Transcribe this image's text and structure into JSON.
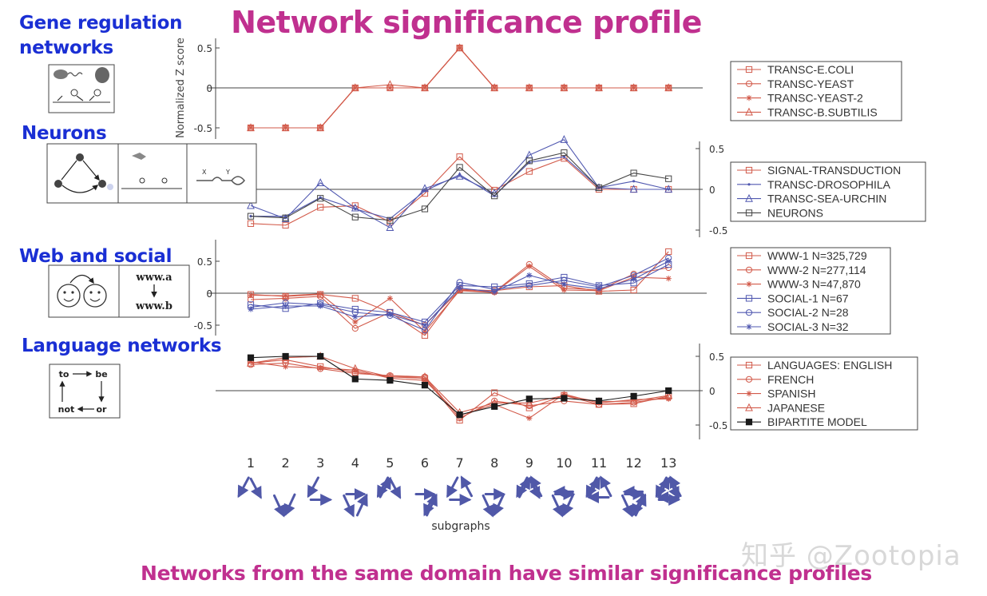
{
  "title": "Network significance profile",
  "subtitle": "Networks from the same domain have similar significance profiles",
  "categories": {
    "gene": "Gene regulation\nnetworks",
    "neurons": "Neurons",
    "web": "Web and social",
    "language": "Language networks"
  },
  "icons": {
    "web_a": "www.a",
    "web_b": "www.b",
    "lang_to": "to",
    "lang_be": "be",
    "lang_not": "not",
    "lang_or": "or",
    "neuron_x": "X",
    "neuron_y": "Y"
  },
  "watermark": "知乎 @Zootopia",
  "chart_data": {
    "type": "line",
    "ylabel": "Normalized Z score",
    "xlabel": "subgraphs",
    "x": [
      1,
      2,
      3,
      4,
      5,
      6,
      7,
      8,
      9,
      10,
      11,
      12,
      13
    ],
    "ylim": [
      -0.5,
      0.5
    ],
    "yticks": [
      "0.5",
      "0",
      "-0.5"
    ],
    "panels": [
      {
        "name": "Gene regulation networks",
        "legend_position": "right",
        "series": [
          {
            "name": "TRANSC-E.COLI",
            "color": "#d25a4a",
            "marker": "square",
            "values": [
              -0.5,
              -0.5,
              -0.5,
              0,
              0,
              0,
              0.5,
              0,
              0,
              0,
              0,
              0,
              0
            ]
          },
          {
            "name": "TRANSC-YEAST",
            "color": "#d25a4a",
            "marker": "circle",
            "values": [
              -0.5,
              -0.5,
              -0.5,
              0,
              0,
              0,
              0.5,
              0,
              0,
              0,
              0,
              0,
              0
            ]
          },
          {
            "name": "TRANSC-YEAST-2",
            "color": "#d25a4a",
            "marker": "star",
            "values": [
              -0.5,
              -0.5,
              -0.5,
              0,
              0,
              0,
              0.5,
              0,
              0,
              0,
              0,
              0,
              0
            ]
          },
          {
            "name": "TRANSC-B.SUBTILIS",
            "color": "#d25a4a",
            "marker": "triangle",
            "values": [
              -0.5,
              -0.5,
              -0.5,
              0,
              0.04,
              0,
              0.5,
              0,
              0,
              0,
              0,
              0,
              0
            ]
          }
        ]
      },
      {
        "name": "Neurons",
        "legend_position": "right",
        "series": [
          {
            "name": "SIGNAL-TRANSDUCTION",
            "color": "#d25a4a",
            "marker": "square",
            "values": [
              -0.42,
              -0.44,
              -0.22,
              -0.2,
              -0.4,
              -0.05,
              0.4,
              -0.01,
              0.22,
              0.38,
              0,
              0,
              0
            ]
          },
          {
            "name": "TRANSC-DROSOPHILA",
            "color": "#5058b0",
            "marker": "dot",
            "values": [
              -0.33,
              -0.33,
              -0.1,
              -0.24,
              -0.36,
              -0.02,
              0.18,
              -0.08,
              0.33,
              0.4,
              0.02,
              0.1,
              0
            ]
          },
          {
            "name": "TRANSC-SEA-URCHIN",
            "color": "#5058b0",
            "marker": "triangle",
            "values": [
              -0.2,
              -0.36,
              0.08,
              -0.23,
              -0.47,
              0.01,
              0.16,
              -0.05,
              0.42,
              0.61,
              0.02,
              0,
              0
            ]
          },
          {
            "name": "NEURONS",
            "color": "#454545",
            "marker": "square",
            "values": [
              -0.33,
              -0.35,
              -0.11,
              -0.34,
              -0.38,
              -0.24,
              0.27,
              -0.08,
              0.35,
              0.45,
              0.02,
              0.2,
              0.13
            ]
          }
        ]
      },
      {
        "name": "Web and social",
        "legend_position": "right",
        "series": [
          {
            "name": "WWW-1 N=325,729",
            "color": "#d25a4a",
            "marker": "square",
            "values": [
              -0.02,
              -0.05,
              -0.02,
              -0.08,
              -0.3,
              -0.66,
              0.06,
              0.04,
              0.1,
              0.12,
              0.03,
              0.05,
              0.65
            ]
          },
          {
            "name": "WWW-2 N=277,114",
            "color": "#d25a4a",
            "marker": "circle",
            "values": [
              -0.1,
              -0.08,
              -0.05,
              -0.55,
              -0.3,
              -0.5,
              0.05,
              0.02,
              0.45,
              0.08,
              0.05,
              0.3,
              0.4
            ]
          },
          {
            "name": "WWW-3 N=47,870",
            "color": "#d25a4a",
            "marker": "star",
            "values": [
              -0.03,
              -0.04,
              -0.01,
              -0.45,
              -0.08,
              -0.6,
              0.04,
              0.01,
              0.42,
              0.05,
              0.04,
              0.25,
              0.23
            ]
          },
          {
            "name": "SOCIAL-1 N=67",
            "color": "#5058b0",
            "marker": "square",
            "values": [
              -0.18,
              -0.24,
              -0.16,
              -0.25,
              -0.3,
              -0.45,
              0.12,
              0.1,
              0.15,
              0.25,
              0.12,
              0.16,
              0.45
            ]
          },
          {
            "name": "SOCIAL-2 N=28",
            "color": "#5058b0",
            "marker": "circle",
            "values": [
              -0.22,
              -0.15,
              -0.18,
              -0.3,
              -0.35,
              -0.58,
              0.17,
              0.06,
              0.12,
              0.2,
              0.1,
              0.28,
              0.55
            ]
          },
          {
            "name": "SOCIAL-3 N=32",
            "color": "#5058b0",
            "marker": "star",
            "values": [
              -0.25,
              -0.2,
              -0.2,
              -0.37,
              -0.33,
              -0.5,
              0.08,
              0.02,
              0.28,
              0.14,
              0.07,
              0.22,
              0.5
            ]
          }
        ]
      },
      {
        "name": "Language networks",
        "legend_position": "right",
        "series": [
          {
            "name": "LANGUAGES: ENGLISH",
            "color": "#d25a4a",
            "marker": "square",
            "values": [
              0.4,
              0.45,
              0.35,
              0.27,
              0.2,
              0.18,
              -0.43,
              -0.03,
              -0.25,
              -0.07,
              -0.2,
              -0.19,
              -0.08
            ]
          },
          {
            "name": "FRENCH",
            "color": "#d25a4a",
            "marker": "circle",
            "values": [
              0.38,
              0.4,
              0.32,
              0.25,
              0.22,
              0.2,
              -0.4,
              -0.15,
              -0.22,
              -0.15,
              -0.2,
              -0.17,
              -0.1
            ]
          },
          {
            "name": "SPANISH",
            "color": "#d25a4a",
            "marker": "star",
            "values": [
              0.42,
              0.35,
              0.33,
              0.3,
              0.18,
              0.15,
              -0.36,
              -0.2,
              -0.4,
              -0.05,
              -0.18,
              -0.13,
              -0.12
            ]
          },
          {
            "name": "JAPANESE",
            "color": "#d25a4a",
            "marker": "triangle",
            "values": [
              0.4,
              0.48,
              0.5,
              0.32,
              0.2,
              0.2,
              -0.32,
              -0.18,
              -0.18,
              -0.07,
              -0.16,
              -0.15,
              -0.07
            ]
          },
          {
            "name": "BIPARTITE MODEL",
            "color": "#1a1a1a",
            "marker": "filled-square",
            "values": [
              0.48,
              0.5,
              0.5,
              0.17,
              0.15,
              0.08,
              -0.35,
              -0.23,
              -0.12,
              -0.11,
              -0.15,
              -0.08,
              0.0
            ]
          }
        ]
      }
    ]
  }
}
